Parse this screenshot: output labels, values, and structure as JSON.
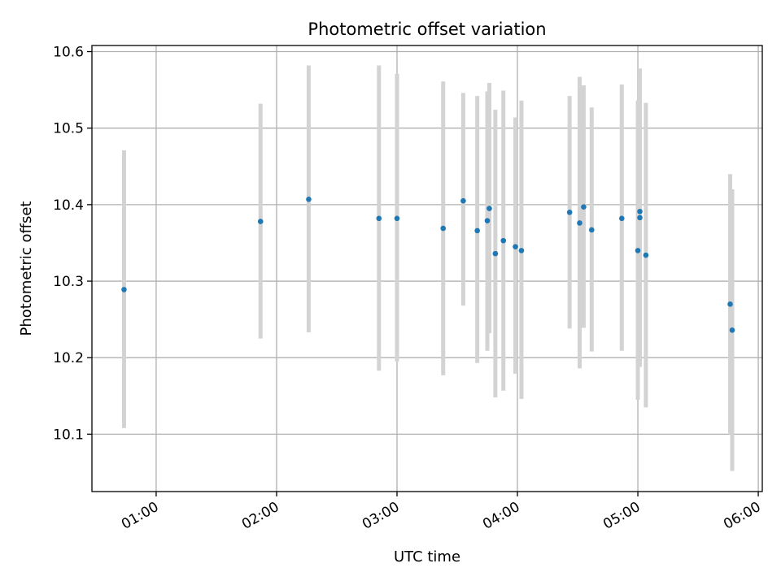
{
  "chart_data": {
    "type": "scatter",
    "title": "Photometric offset variation",
    "xlabel": "UTC time",
    "ylabel": "Photometric offset",
    "grid": true,
    "x_axis_type": "time",
    "xlim": [
      "00:28",
      "06:02"
    ],
    "ylim": [
      10.025,
      10.608
    ],
    "x_ticks": [
      "01:00",
      "02:00",
      "03:00",
      "04:00",
      "05:00",
      "06:00"
    ],
    "y_ticks": [
      10.1,
      10.2,
      10.3,
      10.4,
      10.5,
      10.6
    ],
    "y_tick_labels": [
      "10.1",
      "10.2",
      "10.3",
      "10.4",
      "10.5",
      "10.6"
    ],
    "errorbar_color": "#d3d3d3",
    "marker_color": "#1f77b4",
    "points": [
      {
        "x": "00:44",
        "y": 10.289,
        "ylow": 10.108,
        "yhigh": 10.471
      },
      {
        "x": "01:52",
        "y": 10.378,
        "ylow": 10.225,
        "yhigh": 10.532
      },
      {
        "x": "02:16",
        "y": 10.407,
        "ylow": 10.233,
        "yhigh": 10.582
      },
      {
        "x": "02:51",
        "y": 10.382,
        "ylow": 10.183,
        "yhigh": 10.582
      },
      {
        "x": "03:00",
        "y": 10.382,
        "ylow": 10.195,
        "yhigh": 10.571
      },
      {
        "x": "03:23",
        "y": 10.369,
        "ylow": 10.177,
        "yhigh": 10.561
      },
      {
        "x": "03:33",
        "y": 10.405,
        "ylow": 10.268,
        "yhigh": 10.546
      },
      {
        "x": "03:40",
        "y": 10.366,
        "ylow": 10.193,
        "yhigh": 10.542
      },
      {
        "x": "03:46",
        "y": 10.395,
        "ylow": 10.232,
        "yhigh": 10.559
      },
      {
        "x": "03:45",
        "y": 10.379,
        "ylow": 10.209,
        "yhigh": 10.548
      },
      {
        "x": "03:49",
        "y": 10.336,
        "ylow": 10.148,
        "yhigh": 10.524
      },
      {
        "x": "03:53",
        "y": 10.353,
        "ylow": 10.157,
        "yhigh": 10.549
      },
      {
        "x": "03:59",
        "y": 10.345,
        "ylow": 10.179,
        "yhigh": 10.514
      },
      {
        "x": "04:02",
        "y": 10.34,
        "ylow": 10.146,
        "yhigh": 10.536
      },
      {
        "x": "04:26",
        "y": 10.39,
        "ylow": 10.238,
        "yhigh": 10.542
      },
      {
        "x": "04:31",
        "y": 10.376,
        "ylow": 10.186,
        "yhigh": 10.567
      },
      {
        "x": "04:33",
        "y": 10.397,
        "ylow": 10.239,
        "yhigh": 10.556
      },
      {
        "x": "04:37",
        "y": 10.367,
        "ylow": 10.208,
        "yhigh": 10.527
      },
      {
        "x": "04:52",
        "y": 10.382,
        "ylow": 10.209,
        "yhigh": 10.557
      },
      {
        "x": "05:00",
        "y": 10.34,
        "ylow": 10.145,
        "yhigh": 10.536
      },
      {
        "x": "05:01",
        "y": 10.391,
        "ylow": 10.213,
        "yhigh": 10.568
      },
      {
        "x": "05:01",
        "y": 10.383,
        "ylow": 10.188,
        "yhigh": 10.578
      },
      {
        "x": "05:04",
        "y": 10.334,
        "ylow": 10.135,
        "yhigh": 10.533
      },
      {
        "x": "05:46",
        "y": 10.27,
        "ylow": 10.1,
        "yhigh": 10.44
      },
      {
        "x": "05:47",
        "y": 10.236,
        "ylow": 10.052,
        "yhigh": 10.42
      }
    ]
  }
}
